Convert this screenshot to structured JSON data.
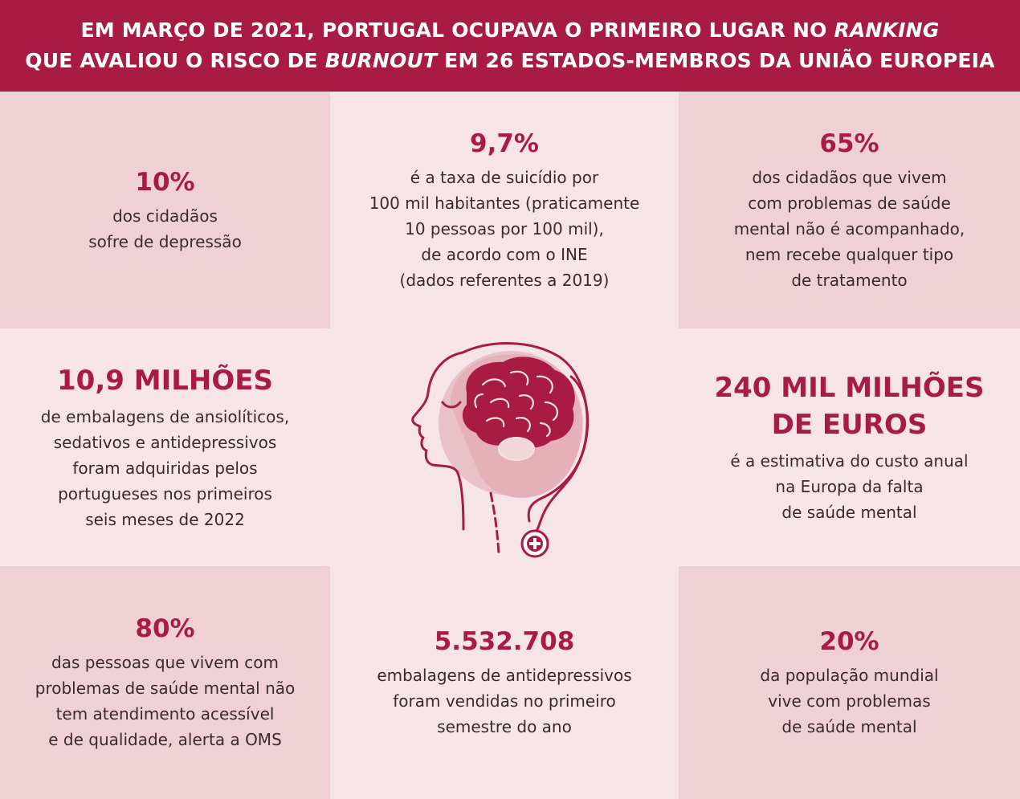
{
  "header": {
    "line1_before": "EM MARÇO DE 2021, PORTUGAL OCUPAVA O PRIMEIRO LUGAR NO ",
    "line1_em": "RANKING",
    "line2_before": "QUE AVALIOU O RISCO DE ",
    "line2_em": "BURNOUT",
    "line2_after": " EM 26 ESTADOS-MEMBROS DA UNIÃO EUROPEIA"
  },
  "cells": {
    "top_left": {
      "stat": "10%",
      "desc": "dos cidadãos\nsofre de depressão"
    },
    "top_center": {
      "stat": "9,7%",
      "desc": "é a taxa de suicídio por\n100 mil habitantes (praticamente\n10 pessoas por 100 mil),\nde acordo com o INE\n(dados referentes a 2019)"
    },
    "top_right": {
      "stat": "65%",
      "desc": "dos cidadãos que vivem\ncom problemas de saúde\nmental não é acompanhado,\nnem recebe qualquer tipo\nde tratamento"
    },
    "mid_left": {
      "stat": "10,9 MILHÕES",
      "desc": "de embalagens de ansiolíticos,\nsedativos e antidepressivos\nforam adquiridas pelos\nportugueses nos primeiros\nseis meses de 2022"
    },
    "mid_right": {
      "stat": "240 MIL MILHÕES\nDE EUROS",
      "desc": "é a estimativa do custo anual\nna Europa da falta\nde saúde mental"
    },
    "bot_left": {
      "stat": "80%",
      "desc": "das pessoas que vivem com\nproblemas de saúde mental não\ntem atendimento acessível\ne de qualidade, alerta a OMS"
    },
    "bot_center": {
      "stat": "5.532.708",
      "desc": "embalagens de antidepressivos\nforam vendidas no primeiro\nsemestre do ano"
    },
    "bot_right": {
      "stat": "20%",
      "desc": "da população mundial\nvive com problemas\nde saúde mental"
    }
  },
  "illustration": {
    "icon": "head-brain-icon",
    "colors": {
      "accent": "#a81c44",
      "soft": "#e6b5bd"
    }
  }
}
